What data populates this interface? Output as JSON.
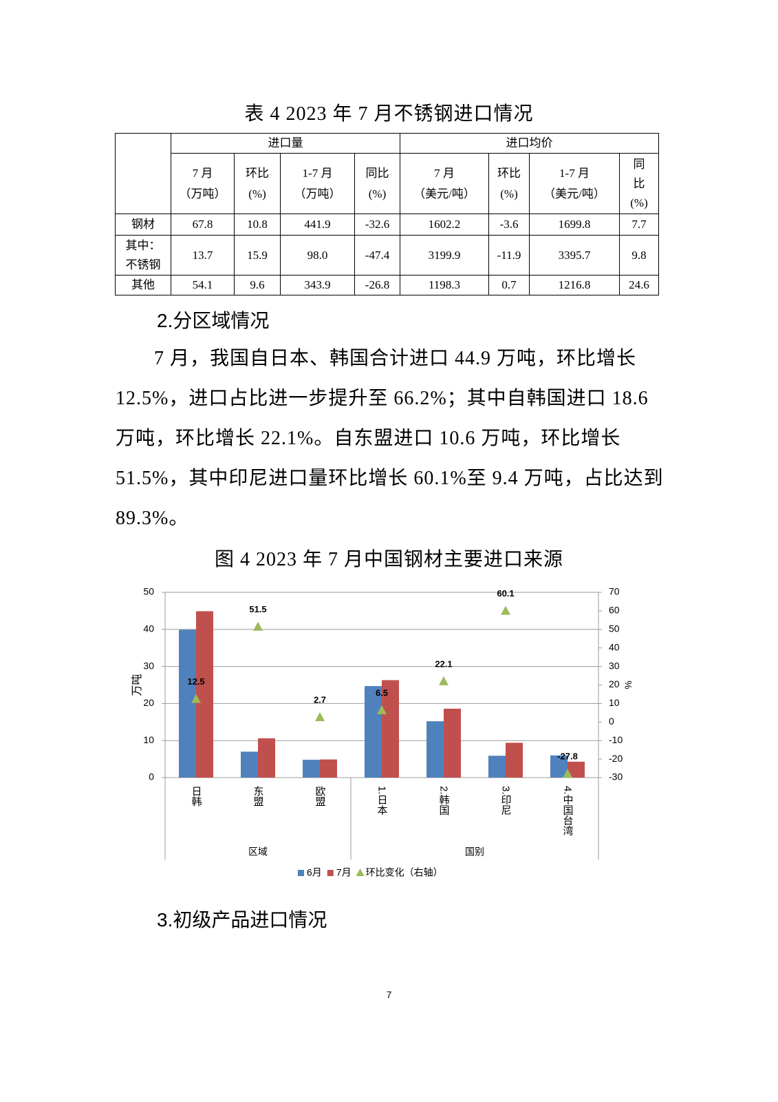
{
  "table": {
    "title": "表 4 2023 年 7 月不锈钢进口情况",
    "groups": [
      "进口量",
      "进口均价"
    ],
    "columns": [
      [
        "7 月",
        "（万吨）"
      ],
      [
        "环比",
        "(%)"
      ],
      [
        "1-7 月",
        "（万吨）"
      ],
      [
        "同比",
        "(%)"
      ],
      [
        "7 月",
        "（美元/吨）"
      ],
      [
        "环比",
        "(%)"
      ],
      [
        "1-7 月",
        "（美元/吨）"
      ],
      [
        "同",
        "比",
        "(%)"
      ]
    ],
    "rows": [
      {
        "label": [
          "钢材"
        ],
        "cells": [
          "67.8",
          "10.8",
          "441.9",
          "-32.6",
          "1602.2",
          "-3.6",
          "1699.8",
          "7.7"
        ]
      },
      {
        "label": [
          "其中：",
          "不锈钢"
        ],
        "cells": [
          "13.7",
          "15.9",
          "98.0",
          "-47.4",
          "3199.9",
          "-11.9",
          "3395.7",
          "9.8"
        ]
      },
      {
        "label": [
          "其他"
        ],
        "cells": [
          "54.1",
          "9.6",
          "343.9",
          "-26.8",
          "1198.3",
          "0.7",
          "1216.8",
          "24.6"
        ]
      }
    ]
  },
  "section2": "2.分区域情况",
  "paragraph": "7 月，我国自日本、韩国合计进口 44.9 万吨，环比增长 12.5%，进口占比进一步提升至 66.2%；其中自韩国进口 18.6 万吨，环比增长 22.1%。自东盟进口 10.6 万吨，环比增长 51.5%，其中印尼进口量环比增长 60.1%至 9.4 万吨，占比达到 89.3%。",
  "chart_data": {
    "type": "bar",
    "title": "图 4 2023 年 7 月中国钢材主要进口来源",
    "categories": [
      "日韩",
      "东盟",
      "欧盟",
      "1.日本",
      "2.韩国",
      "3.印尼",
      "4.中国台湾"
    ],
    "groups": [
      "区域",
      "国别"
    ],
    "series": [
      {
        "name": "6月",
        "color": "#4f81bd",
        "values": [
          39.9,
          7.0,
          4.8,
          24.7,
          15.2,
          5.9,
          6.0
        ]
      },
      {
        "name": "7月",
        "color": "#c0504d",
        "values": [
          44.9,
          10.6,
          4.9,
          26.3,
          18.6,
          9.4,
          4.3
        ]
      },
      {
        "name": "环比变化（右轴）",
        "color": "#9bbb59",
        "axis": "y2",
        "values": [
          12.5,
          51.5,
          2.7,
          6.5,
          22.1,
          60.1,
          -27.8
        ]
      }
    ],
    "ylabel": "万吨",
    "y2label": "%",
    "ylim": [
      0,
      50
    ],
    "yticks": [
      0,
      10,
      20,
      30,
      40,
      50
    ],
    "y2lim": [
      -30,
      70
    ],
    "y2ticks": [
      -30,
      -20,
      -10,
      0,
      10,
      20,
      30,
      40,
      50,
      60,
      70
    ],
    "grid": true
  },
  "section3": "3.初级产品进口情况",
  "page_number": "7"
}
